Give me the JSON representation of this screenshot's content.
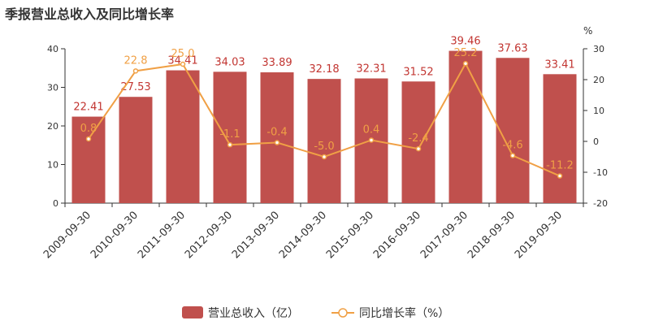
{
  "title": "季报营业总收入及同比增长率",
  "colors": {
    "bar": "#c23531",
    "bar_fill": "#c0504d",
    "line": "#f0a045",
    "axis": "#333333"
  },
  "chart_data": {
    "type": "bar",
    "title": "季报营业总收入及同比增长率",
    "categories": [
      "2009-09-30",
      "2010-09-30",
      "2011-09-30",
      "2012-09-30",
      "2013-09-30",
      "2014-09-30",
      "2015-09-30",
      "2016-09-30",
      "2017-09-30",
      "2018-09-30",
      "2019-09-30"
    ],
    "series": [
      {
        "name": "营业总收入（亿）",
        "type": "bar",
        "axis": "left",
        "values": [
          22.41,
          27.53,
          34.41,
          34.03,
          33.89,
          32.18,
          32.31,
          31.52,
          39.46,
          37.63,
          33.41
        ],
        "labels": [
          "22.41",
          "27.53",
          "34.41",
          "34.03",
          "33.89",
          "32.18",
          "32.31",
          "31.52",
          "39.46",
          "37.63",
          "33.41"
        ]
      },
      {
        "name": "同比增长率（%）",
        "type": "line",
        "axis": "right",
        "values": [
          0.8,
          22.8,
          25.0,
          -1.1,
          -0.4,
          -5.0,
          0.4,
          -2.4,
          25.2,
          -4.6,
          -11.2
        ],
        "labels": [
          "0.8",
          "22.8",
          "25.0",
          "-1.1",
          "-0.4",
          "-5.0",
          "0.4",
          "-2.4",
          "25.2",
          "-4.6",
          "-11.2"
        ]
      }
    ],
    "y_left": {
      "min": 0,
      "max": 40,
      "ticks": [
        "0",
        "10",
        "20",
        "30",
        "40"
      ]
    },
    "y_right": {
      "min": -20,
      "max": 30,
      "unit": "%",
      "ticks": [
        "-20",
        "-10",
        "0",
        "10",
        "20",
        "30"
      ]
    },
    "legend_position": "bottom-center",
    "grid": false
  }
}
